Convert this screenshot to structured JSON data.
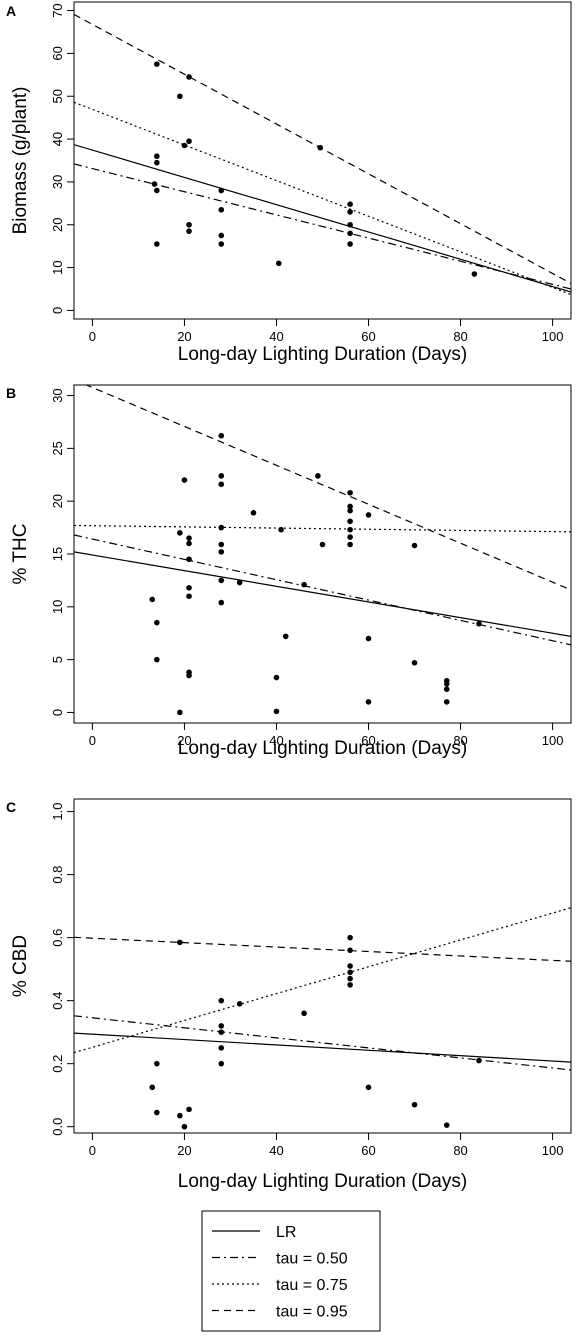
{
  "chart_data": [
    {
      "type": "scatter",
      "panel": "A",
      "xlabel": "Long-day Lighting Duration (Days)",
      "ylabel": "Biomass (g/plant)",
      "xlim": [
        -4,
        104
      ],
      "ylim": [
        -2,
        72
      ],
      "xticks": [
        0,
        20,
        40,
        60,
        80,
        100
      ],
      "yticks": [
        0,
        10,
        20,
        30,
        40,
        50,
        60,
        70
      ],
      "points": [
        [
          14,
          57.5
        ],
        [
          14,
          36
        ],
        [
          14,
          34.5
        ],
        [
          13.5,
          29.5
        ],
        [
          14,
          28
        ],
        [
          14,
          15.5
        ],
        [
          19,
          50
        ],
        [
          21,
          54.5
        ],
        [
          20,
          38.5
        ],
        [
          21,
          39.5
        ],
        [
          21,
          20
        ],
        [
          21,
          18.5
        ],
        [
          28,
          28
        ],
        [
          28,
          23.5
        ],
        [
          28,
          17.5
        ],
        [
          28,
          15.5
        ],
        [
          40.5,
          11
        ],
        [
          49.5,
          38
        ],
        [
          56,
          24.8
        ],
        [
          56,
          23
        ],
        [
          56,
          20
        ],
        [
          56,
          18
        ],
        [
          56,
          15.5
        ],
        [
          83,
          8.5
        ]
      ],
      "lines": [
        {
          "name": "LR",
          "x": [
            -4,
            104
          ],
          "y": [
            38.7,
            4.3
          ]
        },
        {
          "name": "tau = 0.50",
          "x": [
            -4,
            104
          ],
          "y": [
            34.2,
            5.0
          ]
        },
        {
          "name": "tau = 0.75",
          "x": [
            -4,
            104
          ],
          "y": [
            48.6,
            3.7
          ]
        },
        {
          "name": "tau = 0.95",
          "x": [
            -4,
            104
          ],
          "y": [
            69.1,
            6.3
          ]
        }
      ]
    },
    {
      "type": "scatter",
      "panel": "B",
      "xlabel": "Long-day Lighting Duration (Days)",
      "ylabel": "% THC",
      "xlim": [
        -4,
        104
      ],
      "ylim": [
        -1,
        31
      ],
      "xticks": [
        0,
        20,
        40,
        60,
        80,
        100
      ],
      "yticks": [
        0,
        5,
        10,
        15,
        20,
        25,
        30
      ],
      "points": [
        [
          13,
          10.7
        ],
        [
          14,
          8.5
        ],
        [
          14,
          5
        ],
        [
          19,
          17
        ],
        [
          19,
          0
        ],
        [
          20,
          22
        ],
        [
          21,
          16.5
        ],
        [
          21,
          16
        ],
        [
          21,
          14.5
        ],
        [
          21,
          11.8
        ],
        [
          21,
          11
        ],
        [
          21,
          3.8
        ],
        [
          21,
          3.5
        ],
        [
          28,
          26.2
        ],
        [
          28,
          22.4
        ],
        [
          28,
          21.6
        ],
        [
          28,
          17.5
        ],
        [
          28,
          15.9
        ],
        [
          28,
          15.2
        ],
        [
          28,
          12.5
        ],
        [
          28,
          10.4
        ],
        [
          32,
          12.3
        ],
        [
          35,
          18.9
        ],
        [
          40,
          3.3
        ],
        [
          40,
          0.1
        ],
        [
          41,
          17.3
        ],
        [
          42,
          7.2
        ],
        [
          46,
          12.1
        ],
        [
          49,
          22.4
        ],
        [
          50,
          15.9
        ],
        [
          56,
          20.8
        ],
        [
          56,
          19.5
        ],
        [
          56,
          19.1
        ],
        [
          56,
          18.1
        ],
        [
          56,
          17.3
        ],
        [
          56,
          16.6
        ],
        [
          56,
          15.9
        ],
        [
          60,
          18.7
        ],
        [
          60,
          7
        ],
        [
          60,
          1
        ],
        [
          70,
          15.8
        ],
        [
          70,
          4.7
        ],
        [
          77,
          3
        ],
        [
          77,
          2.7
        ],
        [
          77,
          2.2
        ],
        [
          77,
          1
        ],
        [
          84,
          8.4
        ]
      ],
      "lines": [
        {
          "name": "LR",
          "x": [
            -4,
            104
          ],
          "y": [
            15.2,
            7.2
          ]
        },
        {
          "name": "tau = 0.50",
          "x": [
            -4,
            104
          ],
          "y": [
            16.8,
            6.4
          ]
        },
        {
          "name": "tau = 0.75",
          "x": [
            -4,
            104
          ],
          "y": [
            17.7,
            17.1
          ]
        },
        {
          "name": "tau = 0.95",
          "x": [
            -4,
            104
          ],
          "y": [
            31.5,
            11.6
          ]
        }
      ]
    },
    {
      "type": "scatter",
      "panel": "C",
      "xlabel": "Long-day Lighting Duration (Days)",
      "ylabel": "% CBD",
      "xlim": [
        -4,
        104
      ],
      "ylim": [
        -0.02,
        1.04
      ],
      "xticks": [
        0,
        20,
        40,
        60,
        80,
        100
      ],
      "yticks": [
        "0.0",
        "0.2",
        "0.4",
        "0.6",
        "0.8",
        "1.0"
      ],
      "points": [
        [
          13,
          0.125
        ],
        [
          14,
          0.2
        ],
        [
          14,
          0.045
        ],
        [
          19,
          0.585
        ],
        [
          19,
          0.035
        ],
        [
          20,
          0.0
        ],
        [
          21,
          0.055
        ],
        [
          28,
          0.4
        ],
        [
          28,
          0.32
        ],
        [
          28,
          0.3
        ],
        [
          28,
          0.25
        ],
        [
          28,
          0.2
        ],
        [
          32,
          0.39
        ],
        [
          46,
          0.36
        ],
        [
          56,
          0.6
        ],
        [
          56,
          0.56
        ],
        [
          56,
          0.51
        ],
        [
          56,
          0.49
        ],
        [
          56,
          0.47
        ],
        [
          56,
          0.45
        ],
        [
          60,
          0.125
        ],
        [
          70,
          0.07
        ],
        [
          77,
          0.005
        ],
        [
          84,
          0.21
        ]
      ],
      "lines": [
        {
          "name": "LR",
          "x": [
            -4,
            104
          ],
          "y": [
            0.297,
            0.205
          ]
        },
        {
          "name": "tau = 0.50",
          "x": [
            -4,
            104
          ],
          "y": [
            0.352,
            0.18
          ]
        },
        {
          "name": "tau = 0.75",
          "x": [
            -4,
            104
          ],
          "y": [
            0.235,
            0.695
          ]
        },
        {
          "name": "tau = 0.95",
          "x": [
            -4,
            104
          ],
          "y": [
            0.601,
            0.525
          ]
        }
      ]
    }
  ],
  "legend": {
    "entries": [
      {
        "label": "LR",
        "dash": "solid"
      },
      {
        "label": "tau = 0.50",
        "dash": "dashdot"
      },
      {
        "label": "tau = 0.75",
        "dash": "dotted"
      },
      {
        "label": "tau = 0.95",
        "dash": "dashed"
      }
    ]
  }
}
